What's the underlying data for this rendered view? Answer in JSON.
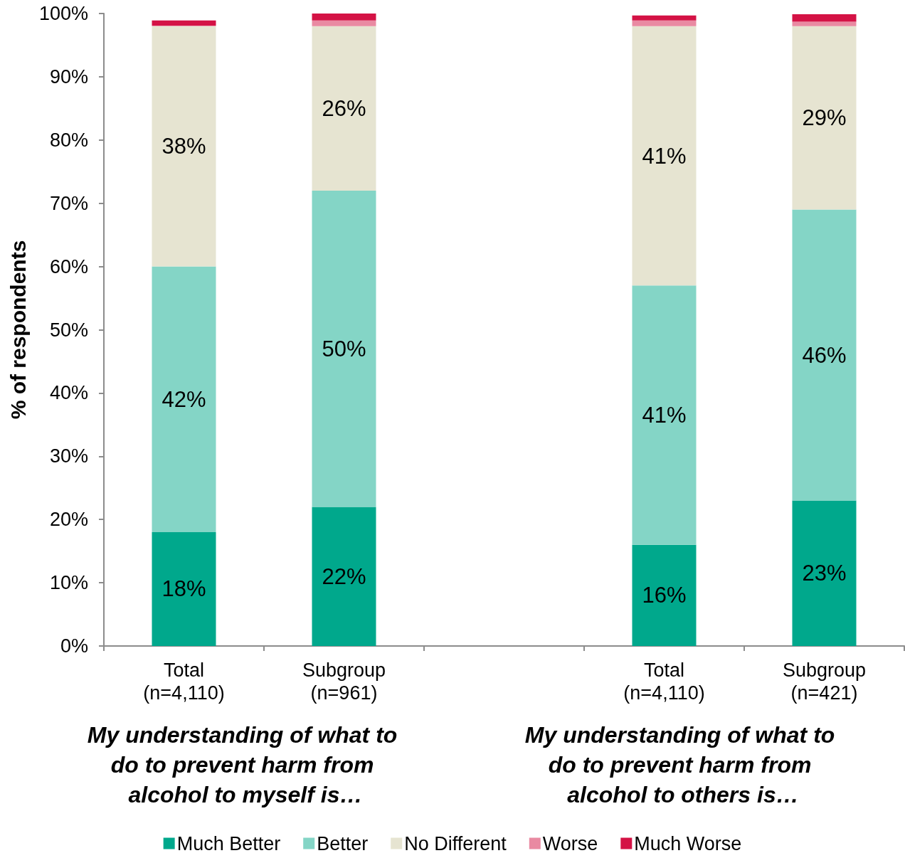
{
  "chart_data": {
    "type": "bar",
    "stacked": true,
    "ylabel": "% of respondents",
    "categories": [
      "Total\n(n=4,110)",
      "Subgroup\n(n=961)",
      null,
      "Total\n(n=4,110)",
      "Subgroup\n(n=421)"
    ],
    "series": [
      {
        "name": "Much Better",
        "color": "#00a88c",
        "values": [
          18,
          22,
          null,
          16,
          23
        ],
        "value_labels": [
          "18%",
          "22%",
          null,
          "16%",
          "23%"
        ]
      },
      {
        "name": "Better",
        "color": "#84d5c6",
        "values": [
          42,
          50,
          null,
          41,
          46
        ],
        "value_labels": [
          "42%",
          "50%",
          null,
          "41%",
          "46%"
        ]
      },
      {
        "name": "No Different",
        "color": "#e6e4d1",
        "values": [
          38,
          26,
          null,
          41,
          29
        ],
        "value_labels": [
          "38%",
          "26%",
          null,
          "41%",
          "29%"
        ]
      },
      {
        "name": "Worse",
        "color": "#e98aa2",
        "values": [
          0.1,
          0.9,
          null,
          0.9,
          0.7
        ]
      },
      {
        "name": "Much Worse",
        "color": "#d41245",
        "values": [
          0.8,
          1.1,
          null,
          0.8,
          1.2
        ]
      }
    ],
    "ylim": [
      0,
      100
    ],
    "yticks": [
      {
        "value": 0,
        "label": "0%"
      },
      {
        "value": 10,
        "label": "10%"
      },
      {
        "value": 20,
        "label": "20%"
      },
      {
        "value": 30,
        "label": "30%"
      },
      {
        "value": 40,
        "label": "40%"
      },
      {
        "value": 50,
        "label": "50%"
      },
      {
        "value": 60,
        "label": "60%"
      },
      {
        "value": 70,
        "label": "70%"
      },
      {
        "value": 80,
        "label": "80%"
      },
      {
        "value": 90,
        "label": "90%"
      },
      {
        "value": 100,
        "label": "100%"
      }
    ],
    "grid": false,
    "legend": "bottom",
    "annotations": [
      "My understanding of what to do to prevent harm from alcohol to myself is…",
      "My understanding of what to do to prevent harm from alcohol to others is…"
    ]
  }
}
